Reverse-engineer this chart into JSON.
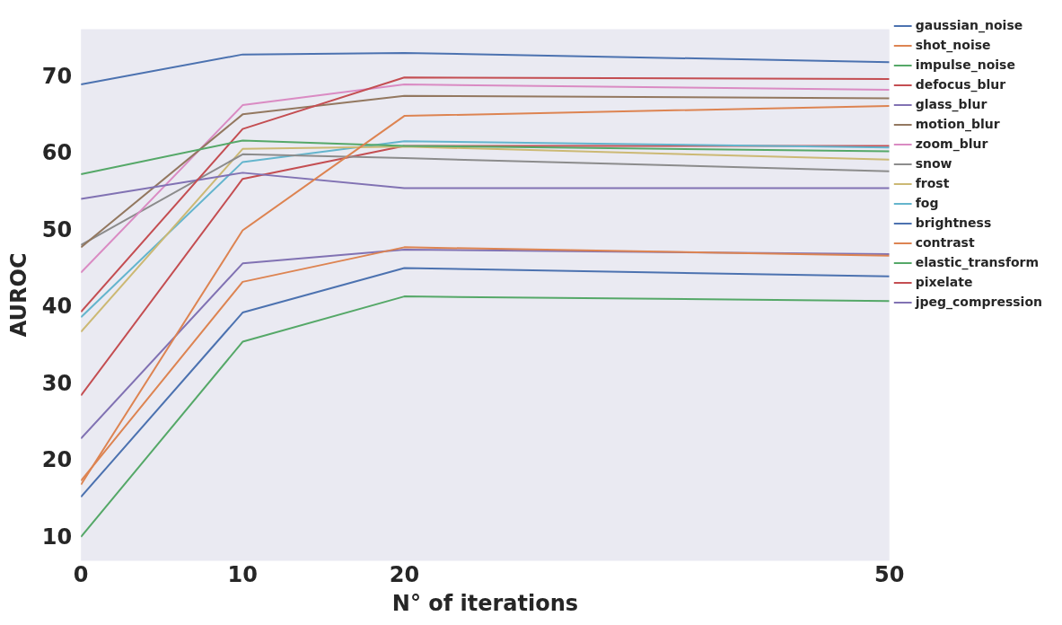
{
  "chart_data": {
    "type": "line",
    "xlabel": "N° of iterations",
    "ylabel": "AUROC",
    "x": [
      0,
      10,
      20,
      50
    ],
    "xlim": [
      0,
      50
    ],
    "xticks": [
      0,
      10,
      20,
      50
    ],
    "ylim": [
      7.1,
      76.3
    ],
    "yticks": [
      10,
      20,
      30,
      40,
      50,
      60,
      70
    ],
    "grid": false,
    "legend": "right",
    "marker": "none",
    "series": [
      {
        "name": "gaussian_noise",
        "color": "#4c72b0",
        "values": [
          69.1,
          73.0,
          73.2,
          72.0
        ]
      },
      {
        "name": "shot_noise",
        "color": "#dd8452",
        "values": [
          17.0,
          50.1,
          65.0,
          66.3
        ]
      },
      {
        "name": "impulse_noise",
        "color": "#55a868",
        "values": [
          57.4,
          61.8,
          61.1,
          60.4
        ]
      },
      {
        "name": "defocus_blur",
        "color": "#c44e52",
        "values": [
          39.5,
          63.3,
          70.0,
          69.8
        ]
      },
      {
        "name": "glass_blur",
        "color": "#8172b3",
        "values": [
          54.2,
          57.6,
          55.6,
          55.6
        ]
      },
      {
        "name": "motion_blur",
        "color": "#937860",
        "values": [
          47.9,
          65.2,
          67.6,
          67.3
        ]
      },
      {
        "name": "zoom_blur",
        "color": "#da8bc3",
        "values": [
          44.6,
          66.4,
          69.1,
          68.4
        ]
      },
      {
        "name": "snow",
        "color": "#8c8c8c",
        "values": [
          48.2,
          60.0,
          59.5,
          57.8
        ]
      },
      {
        "name": "frost",
        "color": "#ccb974",
        "values": [
          36.9,
          60.7,
          61.0,
          59.3
        ]
      },
      {
        "name": "fog",
        "color": "#64b5cd",
        "values": [
          38.8,
          59.0,
          61.7,
          60.9
        ]
      },
      {
        "name": "brightness",
        "color": "#4c72b0",
        "values": [
          15.4,
          39.4,
          45.2,
          44.1
        ]
      },
      {
        "name": "contrast",
        "color": "#dd8452",
        "values": [
          17.5,
          43.4,
          47.9,
          46.8
        ]
      },
      {
        "name": "elastic_transform",
        "color": "#55a868",
        "values": [
          10.2,
          35.6,
          41.5,
          40.9
        ]
      },
      {
        "name": "pixelate",
        "color": "#c44e52",
        "values": [
          28.6,
          56.8,
          61.1,
          61.1
        ]
      },
      {
        "name": "jpeg_compression",
        "color": "#8172b3",
        "values": [
          23.0,
          45.8,
          47.6,
          47.0
        ]
      }
    ]
  }
}
